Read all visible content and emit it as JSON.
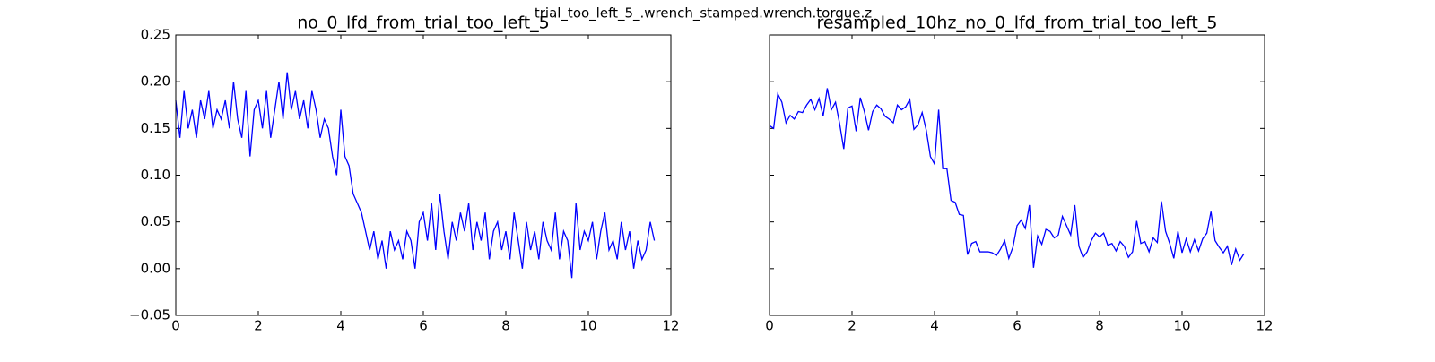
{
  "figure_title": "trial_too_left_5_.wrench_stamped.wrench.torque.z",
  "chart_data": [
    {
      "type": "line",
      "title": "no_0_lfd_from_trial_too_left_5",
      "color": "#0000ff",
      "x": [
        0,
        0.1,
        0.2,
        0.3,
        0.4,
        0.5,
        0.6,
        0.7,
        0.8,
        0.9,
        1,
        1.1,
        1.2,
        1.3,
        1.4,
        1.5,
        1.6,
        1.7,
        1.8,
        1.9,
        2,
        2.1,
        2.2,
        2.3,
        2.4,
        2.5,
        2.6,
        2.7,
        2.8,
        2.9,
        3,
        3.1,
        3.2,
        3.3,
        3.4,
        3.5,
        3.6,
        3.7,
        3.8,
        3.9,
        4,
        4.1,
        4.2,
        4.3,
        4.4,
        4.5,
        4.6,
        4.7,
        4.8,
        4.9,
        5,
        5.1,
        5.2,
        5.3,
        5.4,
        5.5,
        5.6,
        5.7,
        5.8,
        5.9,
        6,
        6.1,
        6.2,
        6.3,
        6.4,
        6.5,
        6.6,
        6.7,
        6.8,
        6.9,
        7,
        7.1,
        7.2,
        7.3,
        7.4,
        7.5,
        7.6,
        7.7,
        7.8,
        7.9,
        8,
        8.1,
        8.2,
        8.3,
        8.4,
        8.5,
        8.6,
        8.7,
        8.8,
        8.9,
        9,
        9.1,
        9.2,
        9.3,
        9.4,
        9.5,
        9.6,
        9.7,
        9.8,
        9.9,
        10,
        10.1,
        10.2,
        10.3,
        10.4,
        10.5,
        10.6,
        10.7,
        10.8,
        10.9,
        11,
        11.1,
        11.2,
        11.3,
        11.4,
        11.5,
        11.6
      ],
      "values": [
        0.18,
        0.14,
        0.19,
        0.15,
        0.17,
        0.14,
        0.18,
        0.16,
        0.19,
        0.15,
        0.17,
        0.16,
        0.18,
        0.15,
        0.2,
        0.16,
        0.14,
        0.19,
        0.12,
        0.17,
        0.18,
        0.15,
        0.19,
        0.14,
        0.17,
        0.2,
        0.16,
        0.21,
        0.17,
        0.19,
        0.16,
        0.18,
        0.15,
        0.19,
        0.17,
        0.14,
        0.16,
        0.15,
        0.12,
        0.1,
        0.17,
        0.12,
        0.11,
        0.08,
        0.07,
        0.06,
        0.04,
        0.02,
        0.04,
        0.01,
        0.03,
        0.0,
        0.04,
        0.02,
        0.03,
        0.01,
        0.04,
        0.03,
        0.0,
        0.05,
        0.06,
        0.03,
        0.07,
        0.02,
        0.08,
        0.04,
        0.01,
        0.05,
        0.03,
        0.06,
        0.04,
        0.07,
        0.02,
        0.05,
        0.03,
        0.06,
        0.01,
        0.04,
        0.05,
        0.02,
        0.04,
        0.01,
        0.06,
        0.03,
        0.0,
        0.05,
        0.02,
        0.04,
        0.01,
        0.05,
        0.03,
        0.02,
        0.06,
        0.01,
        0.04,
        0.03,
        -0.01,
        0.07,
        0.02,
        0.04,
        0.03,
        0.05,
        0.01,
        0.04,
        0.06,
        0.02,
        0.03,
        0.01,
        0.05,
        0.02,
        0.04,
        0.0,
        0.03,
        0.01,
        0.02,
        0.05,
        0.03
      ],
      "xlim": [
        0,
        12
      ],
      "xticks": [
        0,
        2,
        4,
        6,
        8,
        10,
        12
      ],
      "ylim": [
        -0.05,
        0.25
      ],
      "yticks": [
        {
          "value": -0.05,
          "label": "−0.05"
        },
        {
          "value": 0,
          "label": "0.00"
        },
        0.05,
        {
          "value": 0.1,
          "label": "0.10"
        },
        0.15,
        {
          "value": 0.2,
          "label": "0.20"
        },
        0.25
      ],
      "show_ytick_labels": true
    },
    {
      "type": "line",
      "title": "resampled_10hz_no_0_lfd_from_trial_too_left_5",
      "color": "#0000ff",
      "x": [
        0,
        0.1,
        0.2,
        0.3,
        0.4,
        0.5,
        0.6,
        0.7,
        0.8,
        0.9,
        1,
        1.1,
        1.2,
        1.3,
        1.4,
        1.5,
        1.6,
        1.7,
        1.8,
        1.9,
        2,
        2.1,
        2.2,
        2.3,
        2.4,
        2.5,
        2.6,
        2.7,
        2.8,
        2.9,
        3,
        3.1,
        3.2,
        3.3,
        3.4,
        3.5,
        3.6,
        3.7,
        3.8,
        3.9,
        4,
        4.1,
        4.2,
        4.3,
        4.4,
        4.5,
        4.6,
        4.7,
        4.8,
        4.9,
        5,
        5.1,
        5.2,
        5.3,
        5.4,
        5.5,
        5.6,
        5.7,
        5.8,
        5.9,
        6,
        6.1,
        6.2,
        6.3,
        6.4,
        6.5,
        6.6,
        6.7,
        6.8,
        6.9,
        7,
        7.1,
        7.2,
        7.3,
        7.4,
        7.5,
        7.6,
        7.7,
        7.8,
        7.9,
        8,
        8.1,
        8.2,
        8.3,
        8.4,
        8.5,
        8.6,
        8.7,
        8.8,
        8.9,
        9,
        9.1,
        9.2,
        9.3,
        9.4,
        9.5,
        9.6,
        9.7,
        9.8,
        9.9,
        10,
        10.1,
        10.2,
        10.3,
        10.4,
        10.5,
        10.6,
        10.7,
        10.8,
        10.9,
        11,
        11.1,
        11.2,
        11.3,
        11.4,
        11.5
      ],
      "values": [
        0.153,
        0.15,
        0.187,
        0.178,
        0.156,
        0.164,
        0.16,
        0.168,
        0.167,
        0.175,
        0.181,
        0.17,
        0.182,
        0.163,
        0.193,
        0.17,
        0.178,
        0.155,
        0.128,
        0.172,
        0.174,
        0.147,
        0.183,
        0.168,
        0.148,
        0.168,
        0.175,
        0.171,
        0.163,
        0.16,
        0.156,
        0.175,
        0.17,
        0.173,
        0.181,
        0.149,
        0.154,
        0.167,
        0.148,
        0.12,
        0.112,
        0.17,
        0.107,
        0.107,
        0.073,
        0.071,
        0.058,
        0.057,
        0.015,
        0.027,
        0.029,
        0.018,
        0.018,
        0.018,
        0.017,
        0.014,
        0.021,
        0.03,
        0.011,
        0.023,
        0.046,
        0.052,
        0.043,
        0.068,
        0.001,
        0.035,
        0.026,
        0.042,
        0.04,
        0.033,
        0.036,
        0.056,
        0.046,
        0.036,
        0.068,
        0.024,
        0.012,
        0.018,
        0.03,
        0.038,
        0.034,
        0.038,
        0.025,
        0.027,
        0.019,
        0.029,
        0.024,
        0.012,
        0.018,
        0.051,
        0.027,
        0.029,
        0.018,
        0.033,
        0.028,
        0.072,
        0.04,
        0.027,
        0.011,
        0.04,
        0.017,
        0.032,
        0.018,
        0.031,
        0.019,
        0.032,
        0.038,
        0.061,
        0.03,
        0.023,
        0.017,
        0.024,
        0.004,
        0.021,
        0.009,
        0.016
      ],
      "xlim": [
        0,
        12
      ],
      "xticks": [
        0,
        2,
        4,
        6,
        8,
        10,
        12
      ],
      "ylim": [
        -0.05,
        0.25
      ],
      "yticks": [
        -0.05,
        0,
        0.05,
        0.1,
        0.15,
        0.2,
        0.25
      ],
      "show_ytick_labels": false
    }
  ]
}
